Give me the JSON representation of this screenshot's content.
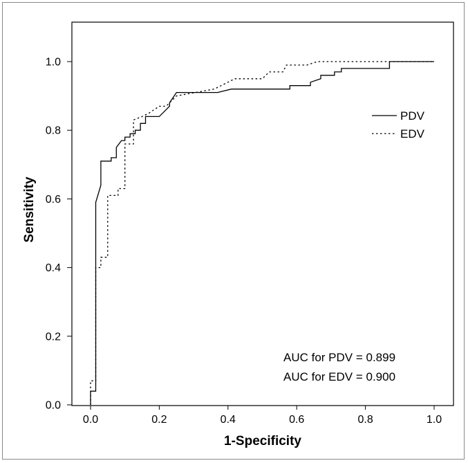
{
  "chart_data": {
    "type": "line",
    "title": "",
    "xlabel": "1-Specificity",
    "ylabel": "Sensitivity",
    "xlim": [
      0.0,
      1.0
    ],
    "ylim": [
      0.0,
      1.0
    ],
    "x_ticks": [
      "0.0",
      "0.2",
      "0.4",
      "0.6",
      "0.8",
      "1.0"
    ],
    "y_ticks": [
      "0.0",
      "0.2",
      "0.4",
      "0.6",
      "0.8",
      "1.0"
    ],
    "grid": false,
    "legend_position": "right",
    "series": [
      {
        "name": "PDV",
        "line_style": "solid",
        "color": "#000000",
        "points": [
          [
            0.0,
            0.0
          ],
          [
            0.0,
            0.04
          ],
          [
            0.015,
            0.04
          ],
          [
            0.015,
            0.59
          ],
          [
            0.03,
            0.64
          ],
          [
            0.03,
            0.71
          ],
          [
            0.06,
            0.71
          ],
          [
            0.06,
            0.72
          ],
          [
            0.075,
            0.72
          ],
          [
            0.075,
            0.75
          ],
          [
            0.09,
            0.77
          ],
          [
            0.1,
            0.77
          ],
          [
            0.1,
            0.78
          ],
          [
            0.115,
            0.78
          ],
          [
            0.115,
            0.79
          ],
          [
            0.13,
            0.79
          ],
          [
            0.13,
            0.8
          ],
          [
            0.145,
            0.8
          ],
          [
            0.145,
            0.82
          ],
          [
            0.16,
            0.82
          ],
          [
            0.16,
            0.84
          ],
          [
            0.2,
            0.84
          ],
          [
            0.23,
            0.87
          ],
          [
            0.23,
            0.88
          ],
          [
            0.25,
            0.91
          ],
          [
            0.37,
            0.91
          ],
          [
            0.41,
            0.92
          ],
          [
            0.58,
            0.92
          ],
          [
            0.58,
            0.93
          ],
          [
            0.64,
            0.93
          ],
          [
            0.64,
            0.94
          ],
          [
            0.67,
            0.95
          ],
          [
            0.67,
            0.96
          ],
          [
            0.71,
            0.96
          ],
          [
            0.71,
            0.97
          ],
          [
            0.73,
            0.97
          ],
          [
            0.73,
            0.98
          ],
          [
            0.87,
            0.98
          ],
          [
            0.87,
            1.0
          ],
          [
            1.0,
            1.0
          ]
        ]
      },
      {
        "name": "EDV",
        "line_style": "dotted",
        "color": "#000000",
        "points": [
          [
            0.0,
            0.0
          ],
          [
            0.0,
            0.07
          ],
          [
            0.015,
            0.07
          ],
          [
            0.015,
            0.4
          ],
          [
            0.03,
            0.4
          ],
          [
            0.03,
            0.43
          ],
          [
            0.05,
            0.43
          ],
          [
            0.05,
            0.61
          ],
          [
            0.08,
            0.61
          ],
          [
            0.08,
            0.63
          ],
          [
            0.1,
            0.63
          ],
          [
            0.1,
            0.76
          ],
          [
            0.125,
            0.76
          ],
          [
            0.125,
            0.83
          ],
          [
            0.15,
            0.84
          ],
          [
            0.17,
            0.85
          ],
          [
            0.2,
            0.87
          ],
          [
            0.22,
            0.87
          ],
          [
            0.25,
            0.9
          ],
          [
            0.36,
            0.92
          ],
          [
            0.42,
            0.95
          ],
          [
            0.5,
            0.95
          ],
          [
            0.52,
            0.97
          ],
          [
            0.56,
            0.97
          ],
          [
            0.57,
            0.99
          ],
          [
            0.63,
            0.99
          ],
          [
            0.66,
            1.0
          ],
          [
            1.0,
            1.0
          ]
        ]
      }
    ],
    "legend": [
      {
        "label": "PDV",
        "line_style": "solid"
      },
      {
        "label": "EDV",
        "line_style": "dotted"
      }
    ],
    "annotations": [
      "AUC for PDV = 0.899",
      "AUC for EDV = 0.900"
    ]
  }
}
